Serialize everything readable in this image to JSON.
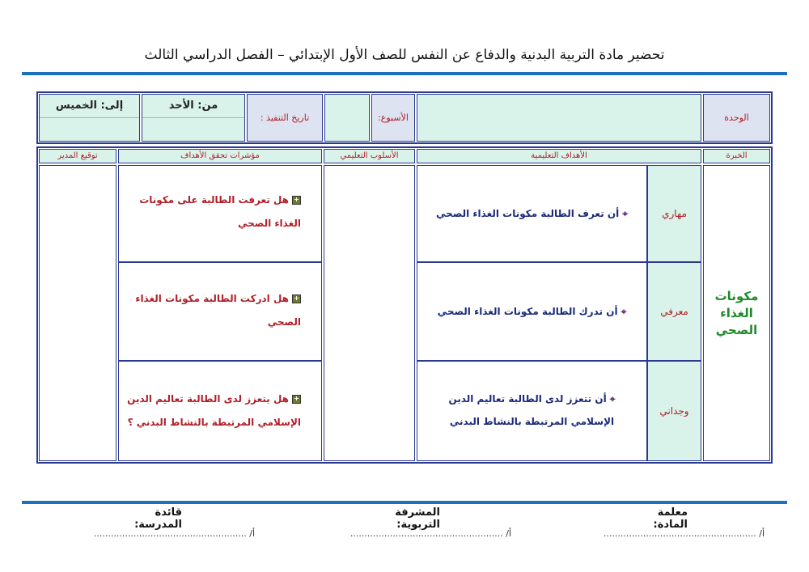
{
  "title": "تحضير مادة التربية البدنية والدفاع عن النفس للصف  الأول الإبتدائي – الفصل الدراسي الثالث",
  "info": {
    "unit_label": "الوحدة",
    "unit_value": "",
    "week_label": "الأسبوع:",
    "week_value": "",
    "date_label": "تاريخ التنفيذ :",
    "from": "من: الأحد",
    "to": "إلى: الخميس"
  },
  "table": {
    "headers": {
      "experience": "الخبرة",
      "objectives": "الأهداف التعليمية",
      "method": "الأسلوب التعليمي",
      "indicators": "مؤشرات تحقق الأهداف",
      "principal_sign": "توقيع المدير"
    },
    "experience": "مكونات الغذاء الصحي",
    "rows": [
      {
        "domain": "مهاري",
        "objective": "أن تعرف الطالبة مكونات الغذاء الصحي",
        "indicator": "هل تعرفت الطالبة على مكونات الغذاء الصحي"
      },
      {
        "domain": "معرفي",
        "objective": "أن تدرك الطالبة مكونات الغذاء الصحي",
        "indicator": "هل ادركت الطالبة مكونات الغذاء الصحي"
      },
      {
        "domain": "وجداني",
        "objective": "أن تتعزز لدى الطالبة  تعاليم الدين الإسلامي المرتبطة بالنشاط البدني",
        "indicator": "هل  يتعزز لدى الطالبة  تعاليم الدين الإسلامي المرتبطة بالنشاط البدني ؟"
      }
    ]
  },
  "signatures": [
    {
      "label": "معلمة المادة:",
      "line": "أ/ ......................................................"
    },
    {
      "label": "المشرفة التربوية:",
      "line": "أ/ ......................................................"
    },
    {
      "label": "قائدة المدرسة:",
      "line": "أ/ ......................................................"
    }
  ],
  "colors": {
    "rule": "#1f6fbf",
    "border": "#2b3a8f",
    "cell_green": "#d9f2ea",
    "cell_lavender": "#dde3f0",
    "objective_text": "#1b2a7a",
    "indicator_text": "#b0202a",
    "experience_text": "#1e8a2a"
  }
}
